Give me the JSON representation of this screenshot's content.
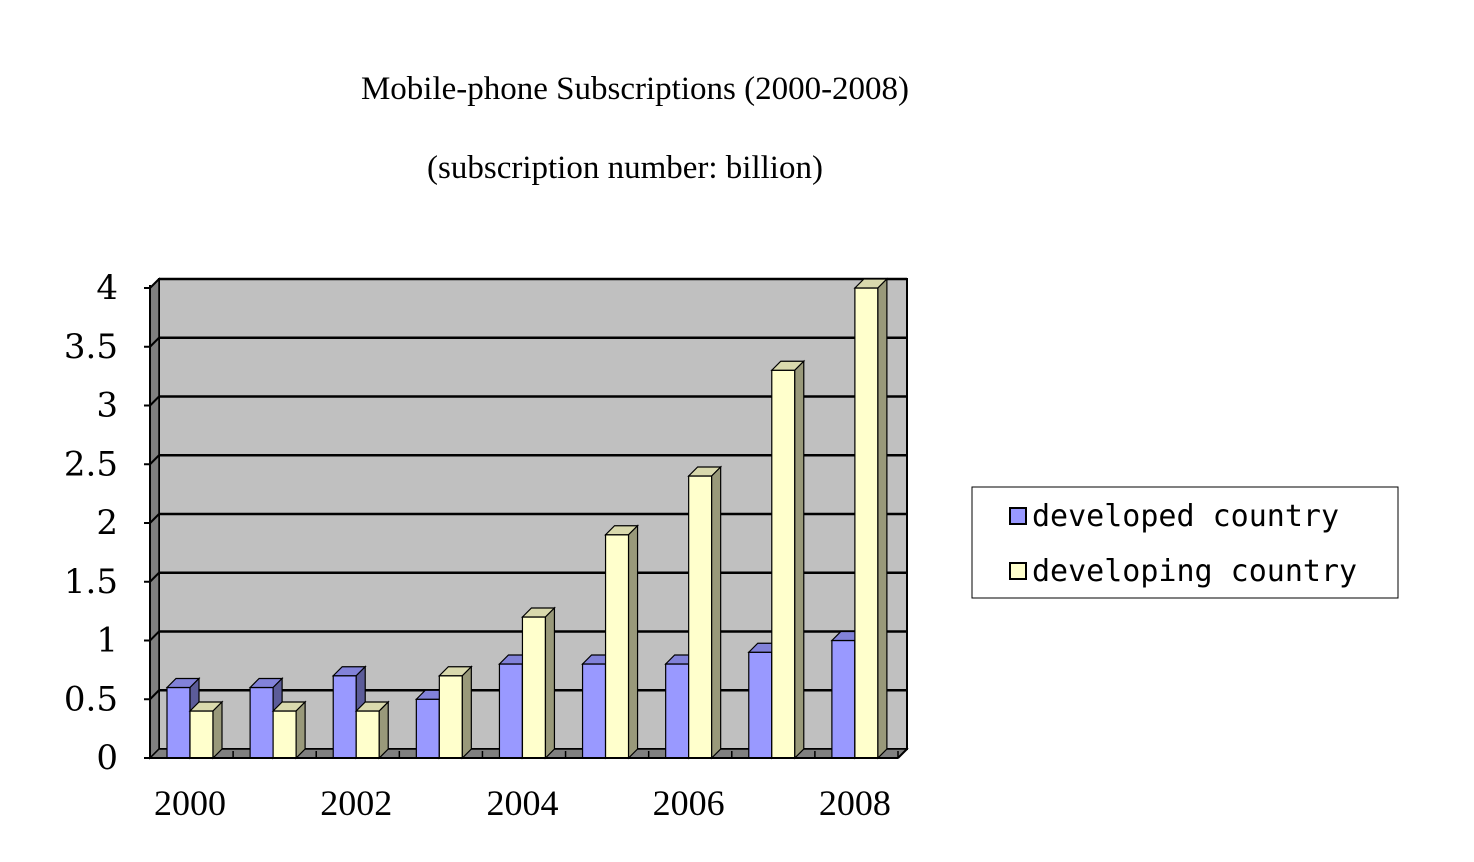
{
  "chart_data": {
    "type": "bar",
    "title": "Mobile-phone Subscriptions (2000-2008)",
    "subtitle": "(subscription number: billion)",
    "categories": [
      "2000",
      "2001",
      "2002",
      "2003",
      "2004",
      "2005",
      "2006",
      "2007",
      "2008"
    ],
    "x_tick_labels": [
      "2000",
      "",
      "2002",
      "",
      "2004",
      "",
      "2006",
      "",
      "2008"
    ],
    "y_tick_labels": [
      "0",
      "0.5",
      "1",
      "1.5",
      "2",
      "2.5",
      "3",
      "3.5",
      "4"
    ],
    "ylim": [
      0,
      4
    ],
    "y_step": 0.5,
    "series": [
      {
        "name": "developed country",
        "color": "#9999ff",
        "values": [
          0.6,
          0.6,
          0.7,
          0.5,
          0.8,
          0.8,
          0.8,
          0.9,
          1.0
        ]
      },
      {
        "name": "developing country",
        "color": "#ffffcc",
        "values": [
          0.4,
          0.4,
          0.4,
          0.7,
          1.2,
          1.9,
          2.4,
          3.3,
          4.0
        ]
      }
    ],
    "grid": true,
    "plot_background": "#c0c0c0",
    "legend_position": "right",
    "three_d": true
  }
}
